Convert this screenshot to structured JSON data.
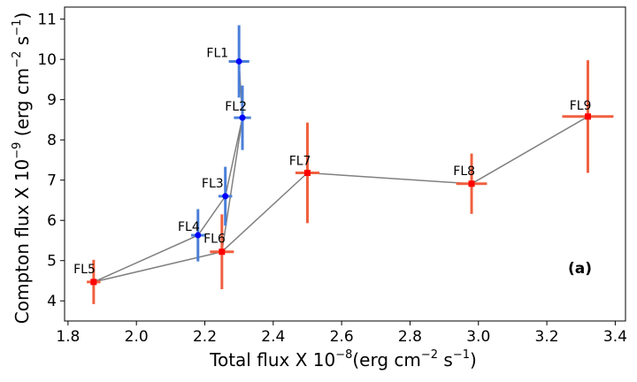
{
  "chart_data": {
    "type": "scatter",
    "xlabel_main": "Total flux X 10",
    "xlabel_exp": "−8",
    "xlabel_unit_pre": "(erg cm",
    "xlabel_unit_exp": "−2",
    "xlabel_unit_mid": " s",
    "xlabel_unit_exp2": "−1",
    "xlabel_unit_post": ")",
    "ylabel_main": "Compton flux X 10",
    "ylabel_exp": "−9",
    "ylabel_unit_pre": " (erg cm",
    "ylabel_unit_exp": "−2",
    "ylabel_unit_mid": " s",
    "ylabel_unit_exp2": "−1",
    "ylabel_unit_post": ")",
    "xlim": [
      1.79,
      3.43
    ],
    "ylim": [
      3.5,
      11.3
    ],
    "xticks": [
      "1.8",
      "2.0",
      "2.2",
      "2.4",
      "2.6",
      "2.8",
      "3.0",
      "3.2",
      "3.4"
    ],
    "yticks": [
      "4",
      "5",
      "6",
      "7",
      "8",
      "9",
      "10",
      "11"
    ],
    "annotation": "(a)",
    "connector_order": [
      "FL5",
      "FL4",
      "FL3",
      "FL2",
      "FL1",
      "FL2",
      "FL6",
      "FL5",
      "FL6",
      "FL7",
      "FL8",
      "FL9"
    ],
    "series": [
      {
        "name": "blue",
        "color": "#0000ff",
        "errcolor": "#4a7fd8",
        "marker": "circle",
        "points": [
          {
            "label": "FL1",
            "x": 2.3,
            "y": 9.95,
            "xerr": 0.03,
            "yerr": 0.9
          },
          {
            "label": "FL2",
            "x": 2.31,
            "y": 8.55,
            "xerr": 0.025,
            "yerr": 0.8
          },
          {
            "label": "FL3",
            "x": 2.26,
            "y": 6.6,
            "xerr": 0.02,
            "yerr": 0.73
          },
          {
            "label": "FL4",
            "x": 2.18,
            "y": 5.63,
            "xerr": 0.02,
            "yerr": 0.65
          }
        ]
      },
      {
        "name": "red",
        "color": "#ff0000",
        "errcolor": "#f06040",
        "marker": "square",
        "points": [
          {
            "label": "FL5",
            "x": 1.875,
            "y": 4.47,
            "xerr": 0.02,
            "yerr": 0.55
          },
          {
            "label": "FL6",
            "x": 2.25,
            "y": 5.22,
            "xerr": 0.035,
            "yerr": 0.93
          },
          {
            "label": "FL7",
            "x": 2.5,
            "y": 7.18,
            "xerr": 0.035,
            "yerr": 1.25
          },
          {
            "label": "FL8",
            "x": 2.98,
            "y": 6.91,
            "xerr": 0.045,
            "yerr": 0.75
          },
          {
            "label": "FL9",
            "x": 3.32,
            "y": 8.58,
            "xerr": 0.075,
            "yerr": 1.4
          }
        ]
      }
    ]
  }
}
